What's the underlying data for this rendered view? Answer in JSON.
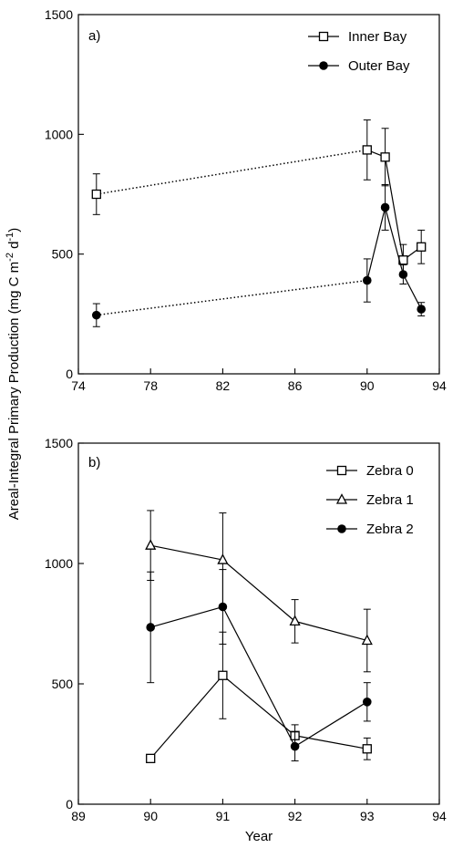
{
  "chart_data": [
    {
      "type": "line",
      "panel_label": "a)",
      "xlim": [
        74,
        94
      ],
      "ylim": [
        0,
        1500
      ],
      "x_ticks": [
        74,
        78,
        82,
        86,
        90,
        94
      ],
      "y_ticks": [
        0,
        500,
        1000,
        1500
      ],
      "legend_position": "top-right",
      "series": [
        {
          "name": "Inner Bay",
          "marker": "open-square",
          "points": [
            {
              "x": 75,
              "y": 750,
              "err": 85
            },
            {
              "x": 90,
              "y": 935,
              "err": 125
            },
            {
              "x": 91,
              "y": 905,
              "err": 120
            },
            {
              "x": 92,
              "y": 475,
              "err": 65
            },
            {
              "x": 93,
              "y": 530,
              "err": 70
            }
          ],
          "dotted_segment": [
            0,
            1
          ]
        },
        {
          "name": "Outer Bay",
          "marker": "filled-circle",
          "points": [
            {
              "x": 75,
              "y": 245,
              "err": 48
            },
            {
              "x": 90,
              "y": 390,
              "err": 90
            },
            {
              "x": 91,
              "y": 695,
              "err": 95
            },
            {
              "x": 92,
              "y": 415,
              "err": 40
            },
            {
              "x": 93,
              "y": 270,
              "err": 28
            }
          ],
          "dotted_segment": [
            0,
            1
          ]
        }
      ]
    },
    {
      "type": "line",
      "panel_label": "b)",
      "xlabel": "Year",
      "xlim": [
        89,
        94
      ],
      "ylim": [
        0,
        1500
      ],
      "x_ticks": [
        89,
        90,
        91,
        92,
        93,
        94
      ],
      "y_ticks": [
        0,
        500,
        1000,
        1500
      ],
      "legend_position": "top-right",
      "series": [
        {
          "name": "Zebra 0",
          "marker": "open-square",
          "points": [
            {
              "x": 90,
              "y": 190,
              "err": 15
            },
            {
              "x": 91,
              "y": 535,
              "err": 180
            },
            {
              "x": 92,
              "y": 285,
              "err": 45
            },
            {
              "x": 93,
              "y": 230,
              "err": 45
            }
          ]
        },
        {
          "name": "Zebra 1",
          "marker": "open-triangle",
          "points": [
            {
              "x": 90,
              "y": 1075,
              "err": 145
            },
            {
              "x": 91,
              "y": 1015,
              "err": 195
            },
            {
              "x": 92,
              "y": 760,
              "err": 90
            },
            {
              "x": 93,
              "y": 680,
              "err": 130
            }
          ]
        },
        {
          "name": "Zebra 2",
          "marker": "filled-circle",
          "points": [
            {
              "x": 90,
              "y": 735,
              "err": 230
            },
            {
              "x": 91,
              "y": 820,
              "err": 155
            },
            {
              "x": 92,
              "y": 240,
              "err": 60
            },
            {
              "x": 93,
              "y": 425,
              "err": 80
            }
          ]
        }
      ]
    }
  ],
  "shared_ylabel": {
    "base": "Areal-Integral Primary Production (mg C m",
    "sup1": "-2",
    "mid": " d",
    "sup2": "-1",
    "end": ")"
  }
}
